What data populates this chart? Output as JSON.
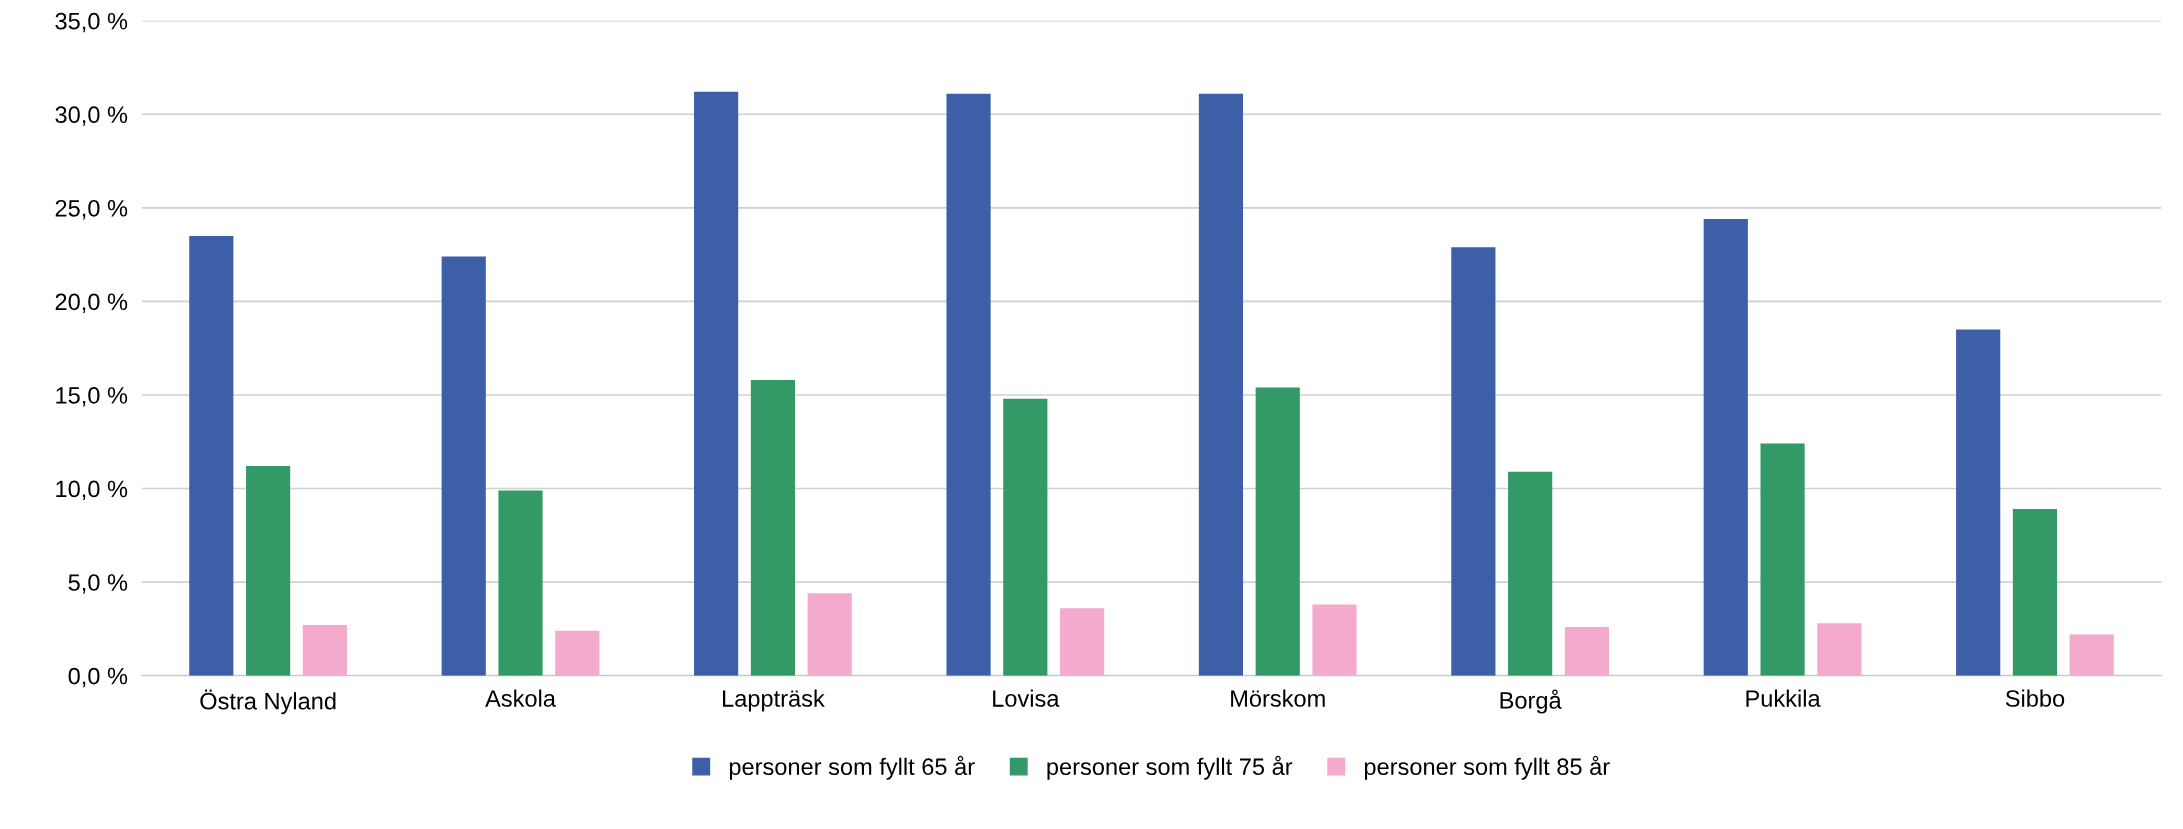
{
  "chart_data": {
    "type": "bar",
    "categories": [
      "Östra Nyland",
      "Askola",
      "Lappträsk",
      "Lovisa",
      "Mörskom",
      "Borgå",
      "Pukkila",
      "Sibbo"
    ],
    "series": [
      {
        "name": "personer som fyllt 65 år",
        "color": "#3d5fa8",
        "values": [
          23.5,
          22.4,
          31.2,
          31.1,
          31.1,
          22.9,
          24.4,
          18.5
        ]
      },
      {
        "name": "personer som fyllt 75 år",
        "color": "#339966",
        "values": [
          11.2,
          9.9,
          15.8,
          14.8,
          15.4,
          10.9,
          12.4,
          8.9
        ]
      },
      {
        "name": "personer som fyllt 85 år",
        "color": "#f4aacd",
        "values": [
          2.7,
          2.4,
          4.4,
          3.6,
          3.8,
          2.6,
          2.8,
          2.2
        ]
      }
    ],
    "ylim": [
      0,
      35
    ],
    "yticks": [
      {
        "value": 0,
        "label": "0,0 %"
      },
      {
        "value": 5,
        "label": "5,0 %"
      },
      {
        "value": 10,
        "label": "10,0 %"
      },
      {
        "value": 15,
        "label": "15,0 %"
      },
      {
        "value": 20,
        "label": "20,0 %"
      },
      {
        "value": 25,
        "label": "25,0 %"
      },
      {
        "value": 30,
        "label": "30,0 %"
      },
      {
        "value": 35,
        "label": "35,0 %"
      }
    ],
    "grid": "y",
    "legend": "bottom"
  }
}
